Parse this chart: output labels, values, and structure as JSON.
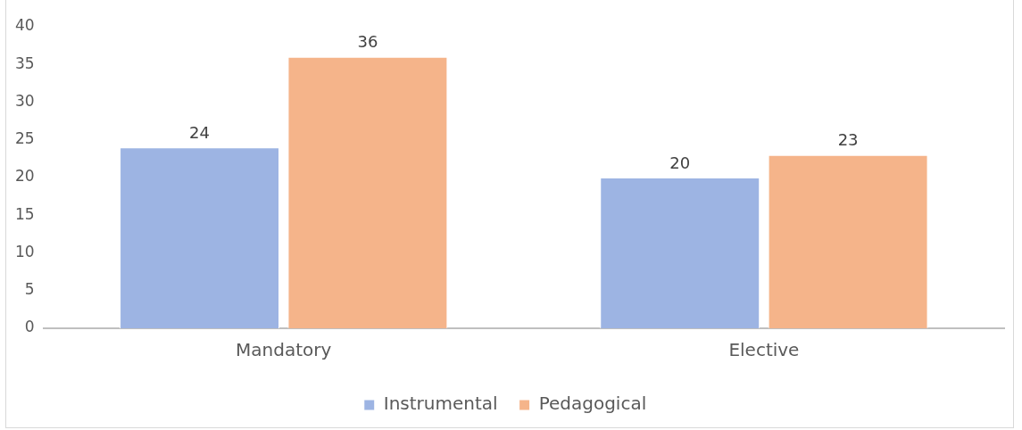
{
  "chart_data": {
    "type": "bar",
    "categories": [
      "Mandatory",
      "Elective"
    ],
    "series": [
      {
        "name": "Instrumental",
        "color": "#9db4e3",
        "values": [
          24,
          20
        ]
      },
      {
        "name": "Pedagogical",
        "color": "#f5b48a",
        "values": [
          36,
          23
        ]
      }
    ],
    "ylim": [
      0,
      40
    ],
    "yticks": [
      0,
      5,
      10,
      15,
      20,
      25,
      30,
      35,
      40
    ],
    "grid": false,
    "legend": "bottom",
    "data_labels": true
  }
}
